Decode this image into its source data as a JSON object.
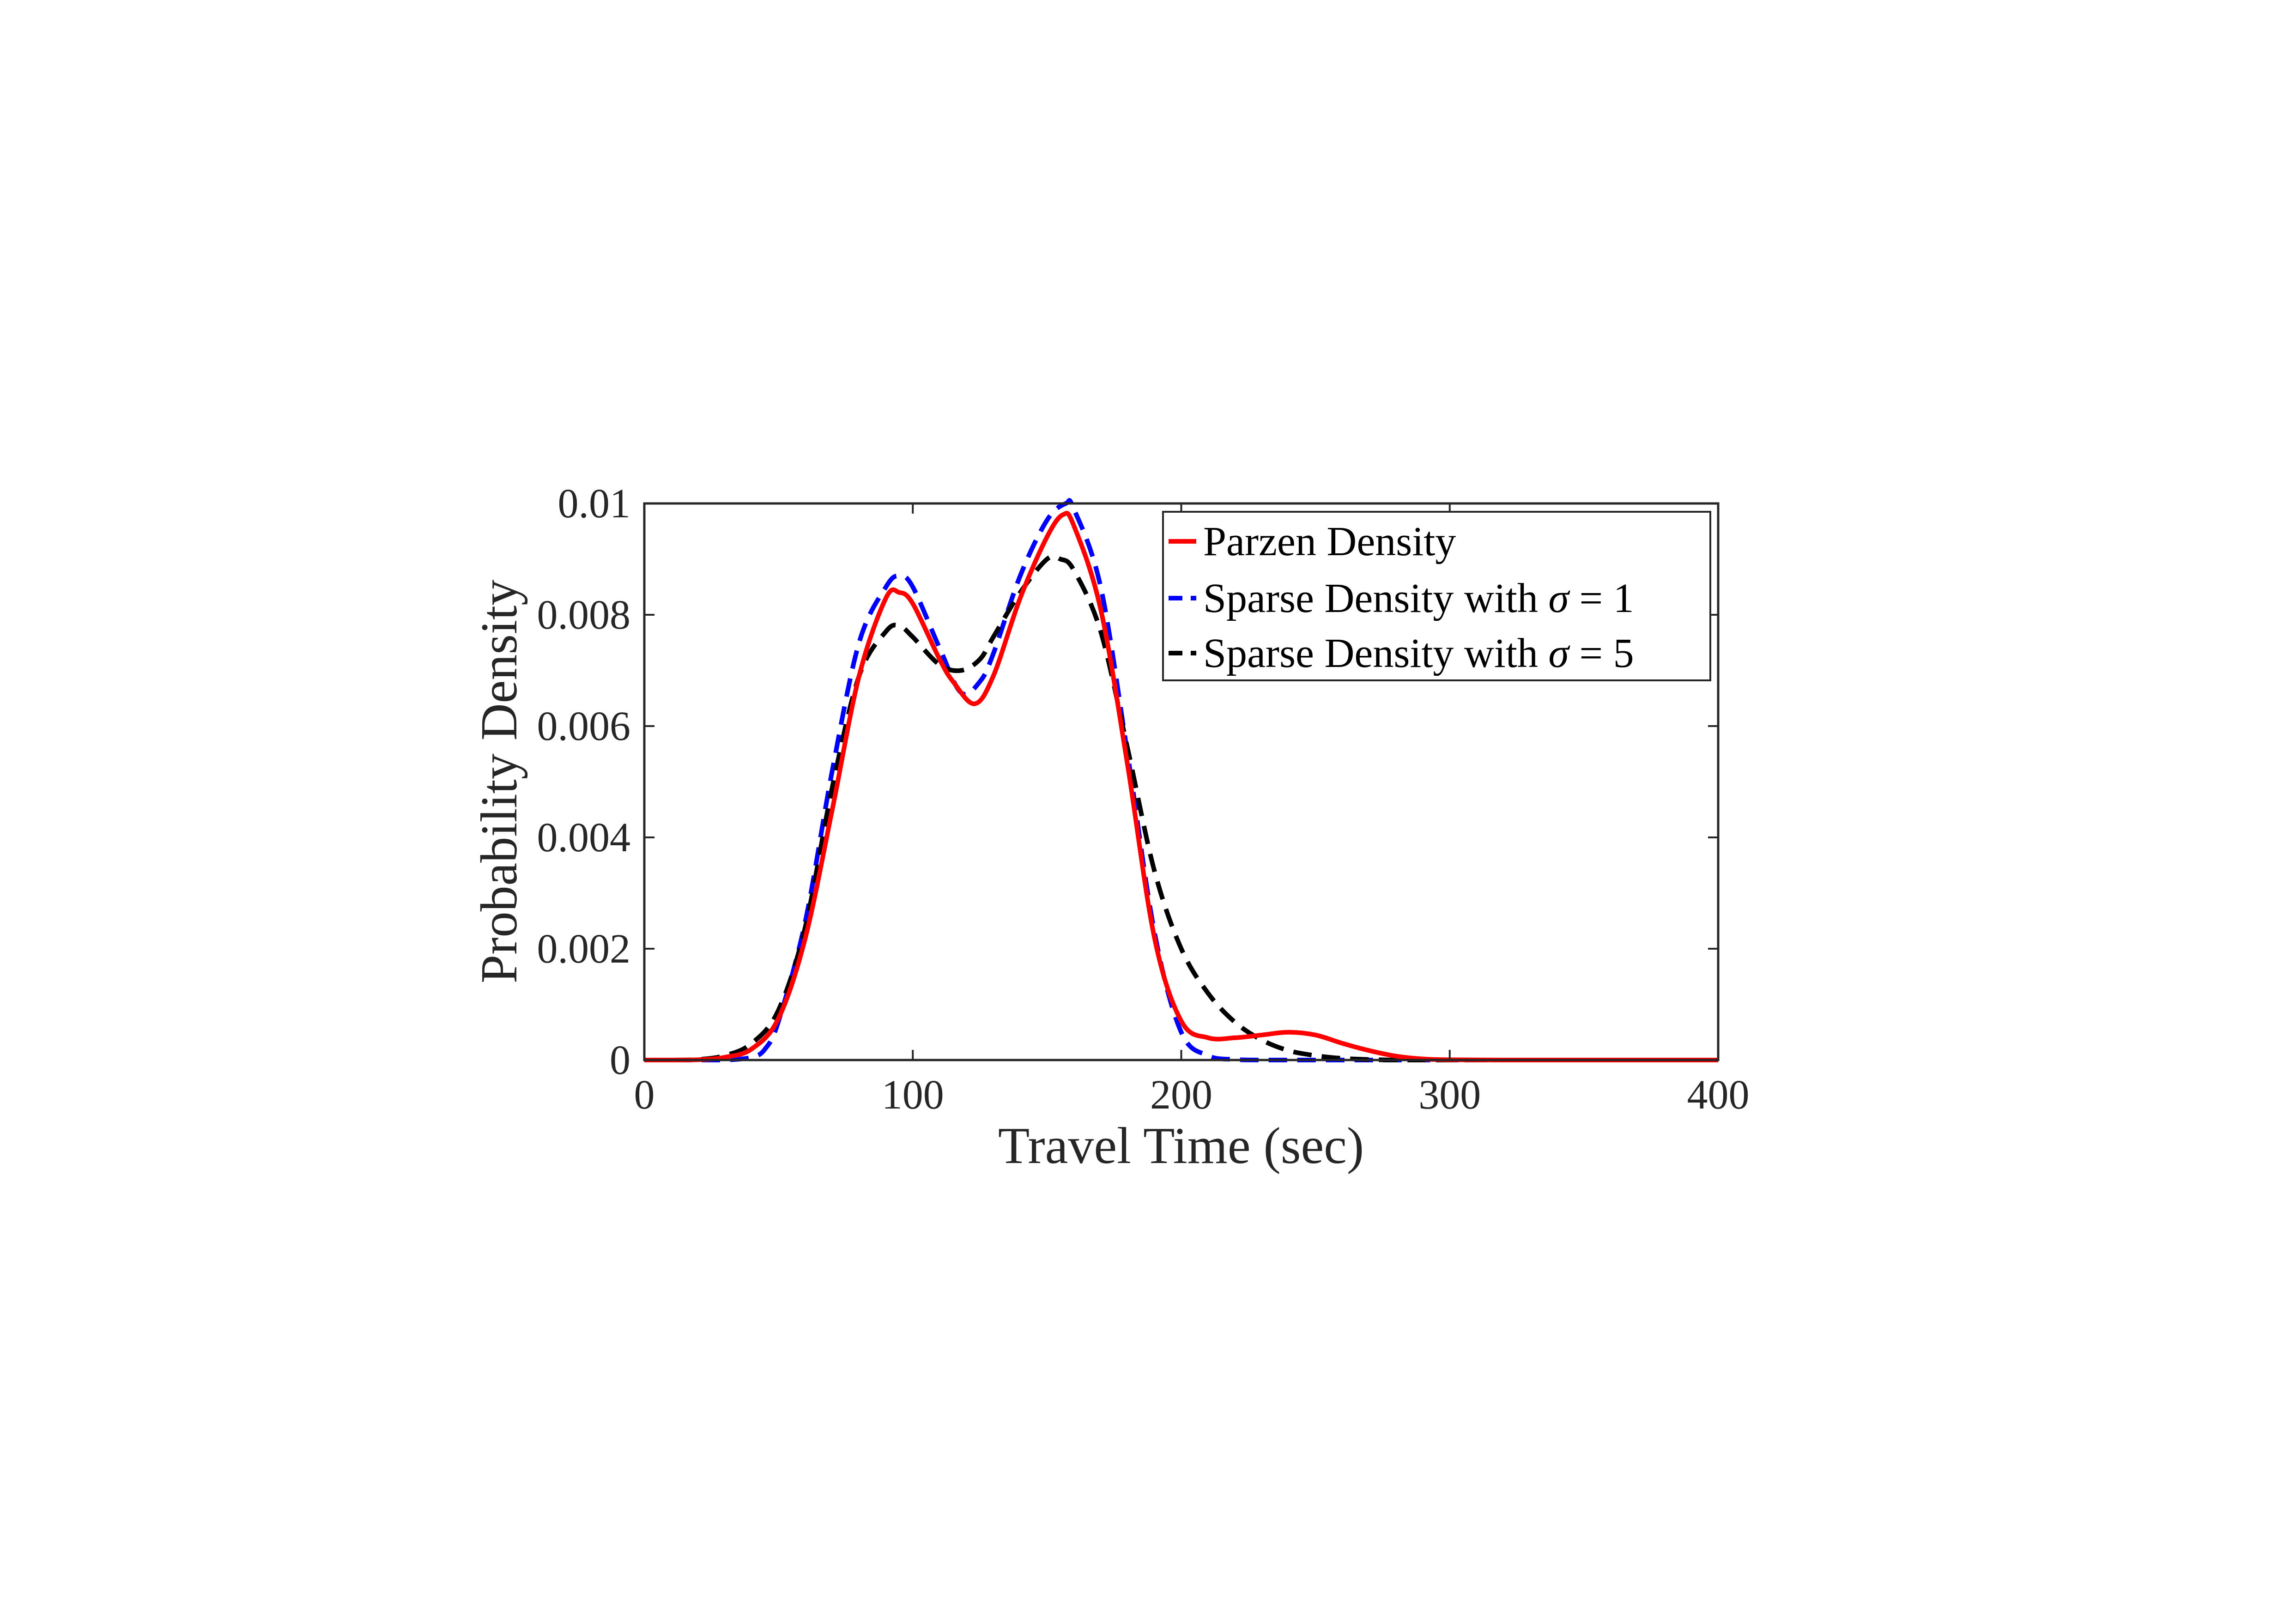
{
  "chart_data": {
    "type": "line",
    "title": "",
    "xlabel": "Travel Time (sec)",
    "ylabel": "Probability Density",
    "xlim": [
      0,
      400
    ],
    "ylim": [
      0,
      0.01
    ],
    "xticks": [
      0,
      100,
      200,
      300,
      400
    ],
    "xtick_labels": [
      "0",
      "100",
      "200",
      "300",
      "400"
    ],
    "yticks": [
      0,
      0.002,
      0.004,
      0.006,
      0.008,
      0.01
    ],
    "ytick_labels": [
      "0",
      "0.002",
      "0.004",
      "0.006",
      "0.008",
      "0.01"
    ],
    "grid": false,
    "legend_position": "top-right",
    "legend": {
      "entries": [
        {
          "prefix": "Parzen Density",
          "sigma": "",
          "suffix": ""
        },
        {
          "prefix": "Sparse Density with ",
          "sigma": "σ",
          "suffix": " = 1"
        },
        {
          "prefix": "Sparse Density with ",
          "sigma": "σ",
          "suffix": " = 5"
        }
      ]
    },
    "series": [
      {
        "color": "#ff0000",
        "line_style": "solid",
        "x": [
          0,
          10,
          20,
          30,
          40,
          50,
          60,
          70,
          80,
          90,
          95,
          100,
          110,
          115,
          123,
          130,
          140,
          150,
          156,
          160,
          170,
          180,
          190,
          200,
          210,
          220,
          230,
          240,
          250,
          260,
          270,
          280,
          290,
          300,
          320,
          350,
          400
        ],
        "y": [
          0,
          0,
          5e-06,
          5e-05,
          0.0002,
          0.00075,
          0.0022,
          0.0045,
          0.0069,
          0.0083,
          0.0084,
          0.0082,
          0.0072,
          0.0068,
          0.0064,
          0.0069,
          0.0083,
          0.0094,
          0.0098,
          0.0096,
          0.0081,
          0.0053,
          0.0022,
          0.0007,
          0.0004,
          0.0004,
          0.00045,
          0.0005,
          0.00045,
          0.0003,
          0.00017,
          7e-05,
          2e-05,
          5e-06,
          0,
          0,
          0
        ]
      },
      {
        "color": "#0000ff",
        "line_style": "dashed",
        "x": [
          0,
          20,
          30,
          40,
          45,
          50,
          60,
          70,
          80,
          90,
          95,
          100,
          110,
          118,
          125,
          130,
          140,
          150,
          157,
          160,
          170,
          180,
          190,
          200,
          210,
          220,
          230,
          240,
          260,
          300,
          400
        ],
        "y": [
          0,
          0,
          0,
          5e-05,
          0.0002,
          0.0007,
          0.0025,
          0.0052,
          0.0075,
          0.0085,
          0.0087,
          0.0085,
          0.0074,
          0.0066,
          0.0068,
          0.0073,
          0.0087,
          0.0097,
          0.01,
          0.0099,
          0.0085,
          0.0055,
          0.0023,
          0.0005,
          8e-05,
          1e-05,
          0,
          0,
          0,
          0,
          0
        ]
      },
      {
        "color": "#000000",
        "line_style": "dashed",
        "x": [
          0,
          10,
          20,
          30,
          40,
          50,
          60,
          70,
          80,
          90,
          95,
          100,
          110,
          118,
          125,
          130,
          140,
          150,
          155,
          160,
          170,
          180,
          190,
          200,
          210,
          220,
          230,
          240,
          250,
          260,
          270,
          280,
          290,
          300,
          320,
          350,
          400
        ],
        "y": [
          0,
          0,
          1e-05,
          8e-05,
          0.0003,
          0.0009,
          0.0024,
          0.0049,
          0.0069,
          0.0077,
          0.0078,
          0.0076,
          0.0071,
          0.007,
          0.0072,
          0.0076,
          0.0084,
          0.009,
          0.009,
          0.0088,
          0.0077,
          0.0056,
          0.0034,
          0.002,
          0.0012,
          0.00068,
          0.00036,
          0.00017,
          8e-05,
          3e-05,
          1e-05,
          0,
          0,
          0,
          0,
          0,
          0
        ]
      }
    ]
  }
}
